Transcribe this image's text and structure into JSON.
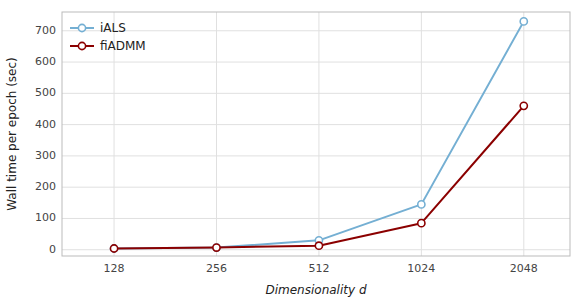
{
  "chart_data": {
    "type": "line",
    "x": [
      128,
      256,
      512,
      1024,
      2048
    ],
    "series": [
      {
        "name": "iALS",
        "color": "#74afd3",
        "marker": "circle",
        "values": [
          4,
          7,
          30,
          145,
          730
        ]
      },
      {
        "name": "fiADMM",
        "color": "#8b0000",
        "marker": "circle",
        "values": [
          4,
          7,
          13,
          85,
          460
        ]
      }
    ],
    "xlabel": "Dimensionality d",
    "ylabel": "Wall time per epoch (sec)",
    "xlim": [
      90,
      2800
    ],
    "ylim": [
      -20,
      760
    ],
    "xticks": [
      128,
      256,
      512,
      1024,
      2048
    ],
    "yticks": [
      0,
      100,
      200,
      300,
      400,
      500,
      600,
      700
    ],
    "log": "x",
    "grid": true,
    "legend": "upper left"
  }
}
